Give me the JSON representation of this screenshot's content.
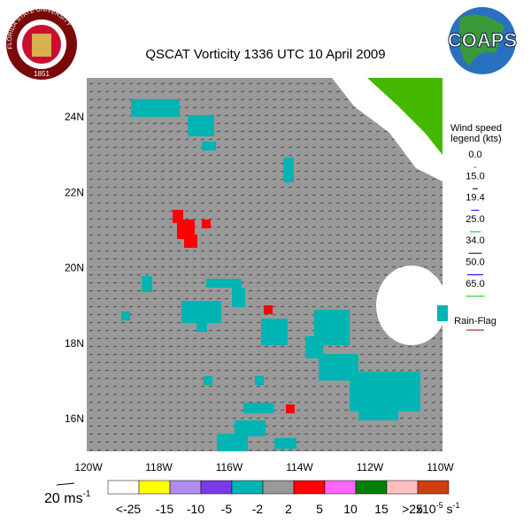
{
  "header": {
    "title": "QSCAT Vorticity 1336 UTC 10 April 2009",
    "logo_left": {
      "name": "FLORIDA STATE UNIVERSITY",
      "year": "1851"
    },
    "logo_right": "COAPS"
  },
  "map": {
    "lat_labels": [
      "24N",
      "22N",
      "20N",
      "18N",
      "16N"
    ],
    "lon_labels": [
      "120W",
      "118W",
      "116W",
      "114W",
      "112W",
      "110W"
    ]
  },
  "wind_legend": {
    "title": [
      "Wind speed",
      "legend (kts)"
    ],
    "entries": [
      {
        "label": "0.0",
        "color": "#ffffff"
      },
      {
        "label": "15.0",
        "color": "#000000"
      },
      {
        "label": "19.4",
        "color": "#0000ff"
      },
      {
        "label": "25.0",
        "color": "#00cc00"
      },
      {
        "label": "34.0",
        "color": "#000000"
      },
      {
        "label": "50.0",
        "color": "#0000ff"
      },
      {
        "label": "65.0",
        "color": "#00cc00"
      }
    ],
    "rain_flag": "Rain-Flag"
  },
  "scale_arrow": {
    "text": "20 ms",
    "exp": "-1"
  },
  "colorbar": {
    "colors": [
      "#ffffff",
      "#ffff00",
      "#b08cf0",
      "#7a3ae8",
      "#00b4b4",
      "#999999",
      "#ff0000",
      "#ff66ff",
      "#008000",
      "#ffc0c0",
      "#cc4010"
    ],
    "labels": [
      "<-25",
      "-15",
      "-10",
      "-5",
      "-2",
      "2",
      "5",
      "10",
      "15",
      ">25"
    ],
    "unit": "x10",
    "unit_exp": "-5",
    "unit_tail": " s",
    "unit_tail_exp": "-1"
  }
}
